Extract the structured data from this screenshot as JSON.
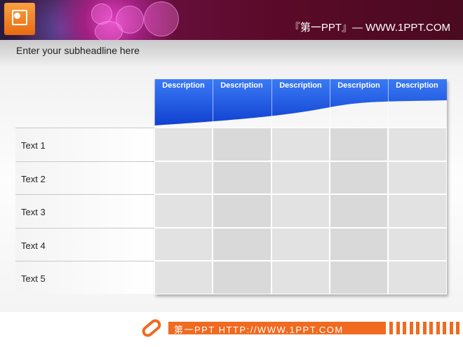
{
  "header": {
    "site_title": "『第一PPT』— WWW.1PPT.COM",
    "logo_icon": "powerpoint-icon"
  },
  "subheadline": "Enter your subheadline here",
  "table": {
    "columns": [
      "Description",
      "Description",
      "Description",
      "Description",
      "Description"
    ],
    "rows": [
      "Text 1",
      "Text 2",
      "Text 3",
      "Text 4",
      "Text 5"
    ],
    "header_color": "#1a56e0"
  },
  "footer": {
    "text": "第一PPT HTTP://WWW.1PPT.COM",
    "accent": "#f06a20",
    "icon": "link-icon"
  }
}
